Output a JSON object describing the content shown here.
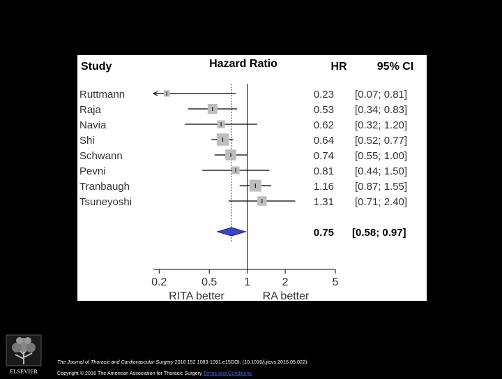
{
  "chart_data": {
    "type": "forest",
    "columns": {
      "study": "Study",
      "plot": "Hazard Ratio",
      "hr": "HR",
      "ci": "95% CI"
    },
    "studies": [
      {
        "name": "Ruttmann",
        "hr": 0.23,
        "lo": 0.07,
        "hi": 0.81,
        "hr_text": "0.23",
        "ci_text": "[0.07; 0.81]",
        "weight": 0.5
      },
      {
        "name": "Raja",
        "hr": 0.53,
        "lo": 0.34,
        "hi": 0.83,
        "hr_text": "0.53",
        "ci_text": "[0.34; 0.83]",
        "weight": 1.0
      },
      {
        "name": "Navia",
        "hr": 0.62,
        "lo": 0.32,
        "hi": 1.2,
        "hr_text": "0.62",
        "ci_text": "[0.32; 1.20]",
        "weight": 0.72
      },
      {
        "name": "Shi",
        "hr": 0.64,
        "lo": 0.52,
        "hi": 0.77,
        "hr_text": "0.64",
        "ci_text": "[0.52; 0.77]",
        "weight": 1.35
      },
      {
        "name": "Schwann",
        "hr": 0.74,
        "lo": 0.55,
        "hi": 1.0,
        "hr_text": "0.74",
        "ci_text": "[0.55; 1.00]",
        "weight": 1.15
      },
      {
        "name": "Pevni",
        "hr": 0.81,
        "lo": 0.44,
        "hi": 1.5,
        "hr_text": "0.81",
        "ci_text": "[0.44; 1.50]",
        "weight": 0.7
      },
      {
        "name": "Tranbaugh",
        "hr": 1.16,
        "lo": 0.87,
        "hi": 1.55,
        "hr_text": "1.16",
        "ci_text": "[0.87; 1.55]",
        "weight": 1.3
      },
      {
        "name": "Tsuneyoshi",
        "hr": 1.31,
        "lo": 0.71,
        "hi": 2.4,
        "hr_text": "1.31",
        "ci_text": "[0.71; 2.40]",
        "weight": 0.95
      }
    ],
    "pooled": {
      "hr": 0.75,
      "lo": 0.58,
      "hi": 0.97,
      "hr_text": "0.75",
      "ci_text": "[0.58; 0.97]"
    },
    "x_scale": "log",
    "xlim": [
      0.18,
      5
    ],
    "x_ticks": [
      0.2,
      0.5,
      1,
      2,
      5
    ],
    "x_tick_labels": [
      "0.2",
      "0.5",
      "1",
      "2",
      "5"
    ],
    "xlabel_left": "RITA better",
    "xlabel_right": "RA better",
    "reference_line": 1,
    "colors": {
      "box": "#bdbdbd",
      "diamond": "#3a45c8",
      "line": "#000000"
    }
  },
  "footer": {
    "publisher_logo_text": "ELSEVIER",
    "journal": "The Journal of Thoracic and Cardiovascular Surgery",
    "citation": " 2016 152 1083-1091.e15DOI: (10.1016/j.jtcvs.2016.05.022)",
    "copyright": "Copyright © 2016 The American Association for Thoracic Surgery ",
    "terms": "Terms and Conditions"
  }
}
